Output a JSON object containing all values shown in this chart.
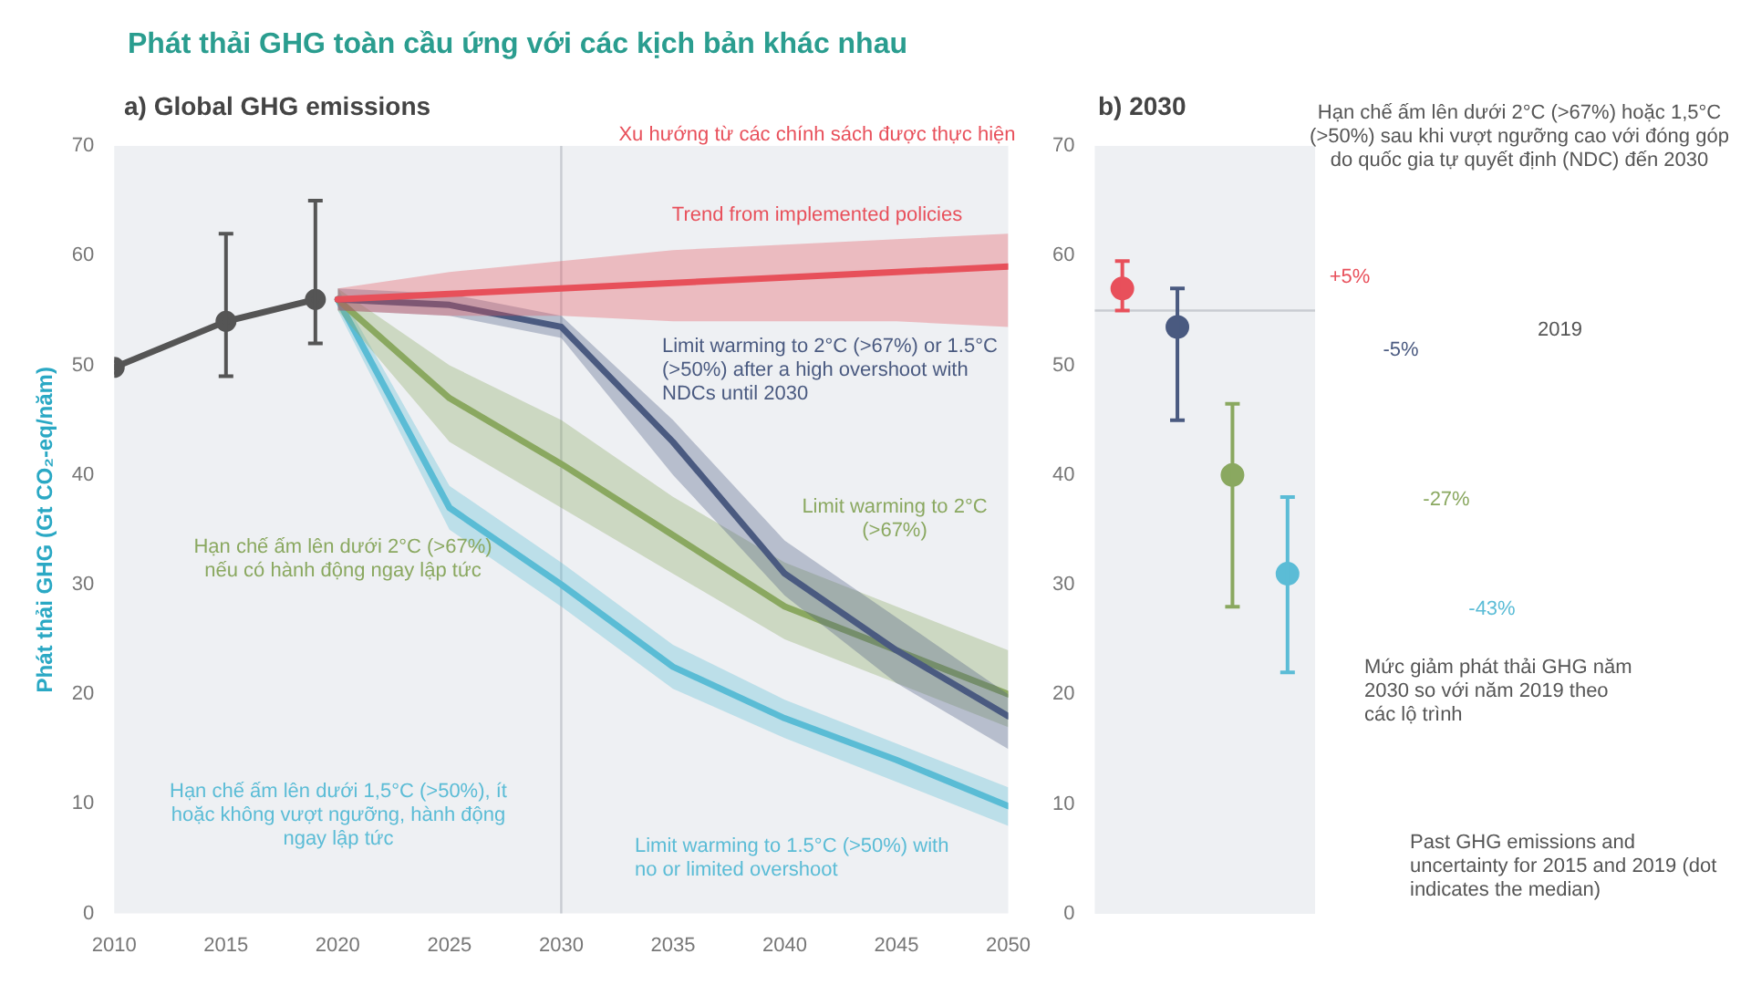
{
  "chart_data": [
    {
      "type": "line",
      "title": "Phát thải GHG toàn cầu ứng với các kịch bản khác nhau",
      "subtitle": "a) Global GHG emissions",
      "ylabel": "Phát thải GHG (Gt CO₂-eq/năm)",
      "xlim": [
        2010,
        2050
      ],
      "xticks": [
        2010,
        2015,
        2020,
        2025,
        2030,
        2035,
        2040,
        2045,
        2050
      ],
      "ylim": [
        0,
        70
      ],
      "yticks": [
        0,
        10,
        20,
        30,
        40,
        50,
        60,
        70
      ],
      "grid": false,
      "ref_lines": [
        {
          "axis": "x",
          "value": 2030,
          "label": null
        }
      ],
      "series": [
        {
          "color": "#555555",
          "marker": "circle",
          "x": [
            2010,
            2015,
            2019
          ],
          "values": [
            49.8,
            54,
            56
          ],
          "errors": [
            null,
            [
              49,
              62
            ],
            [
              52,
              65
            ]
          ]
        },
        {
          "name": "Xu hướng từ các chính sách được thực hiện",
          "color": "#e8505b",
          "x": [
            2020,
            2025,
            2030,
            2035,
            2040,
            2045,
            2050
          ],
          "values": [
            56,
            56.5,
            57,
            57.5,
            58,
            58.5,
            59
          ],
          "lower": [
            55,
            54.5,
            54.5,
            54,
            54,
            54,
            53.5
          ],
          "upper": [
            57,
            58.5,
            59.5,
            60.5,
            61,
            61.5,
            62
          ]
        },
        {
          "name": "Limit warming to 2°C (>67%) or 1.5°C (>50%) after a high overshoot with NDCs until 2030",
          "color": "#4a5a80",
          "x": [
            2020,
            2025,
            2030,
            2035,
            2040,
            2045,
            2050
          ],
          "values": [
            56,
            55.5,
            53.5,
            43,
            31,
            24,
            18
          ],
          "lower": [
            55,
            54.5,
            52.5,
            40,
            29,
            21,
            15
          ],
          "upper": [
            57,
            56.5,
            54.5,
            45,
            34,
            27,
            20
          ]
        },
        {
          "name": "Hạn chế ấm lên dưới 2°C (>67%) nếu có hành động ngay lập tức",
          "color": "#8aa860",
          "x": [
            2020,
            2025,
            2030,
            2035,
            2040,
            2045,
            2050
          ],
          "values": [
            56,
            47,
            41,
            34.5,
            28,
            24,
            20
          ],
          "lower": [
            55,
            43,
            37,
            31,
            25,
            21,
            17
          ],
          "upper": [
            57,
            50,
            45,
            38,
            32,
            28,
            24
          ]
        },
        {
          "name": "Hạn chế ấm lên dưới 1,5°C (>50%), ít hoặc không vượt ngưỡng, hành động ngay lập tức",
          "color": "#5bbcd6",
          "x": [
            2020,
            2025,
            2030,
            2035,
            2040,
            2045,
            2050
          ],
          "values": [
            56,
            37,
            30,
            22.5,
            17.8,
            14,
            9.8
          ],
          "lower": [
            55,
            35,
            28,
            20.5,
            16,
            12,
            8
          ],
          "upper": [
            57,
            39,
            32,
            24.5,
            19.5,
            15.5,
            11.5
          ]
        }
      ],
      "annotations": [
        "Trend from implemented policies",
        "Limit warming to 2°C (>67%)",
        "Limit warming to 1.5°C (>50%) with no or limited overshoot",
        "Past GHG emissions and uncertainty for 2015 and 2019 (dot indicates the median)"
      ]
    },
    {
      "type": "scatter",
      "title": "b) 2030",
      "categories": [
        null,
        null,
        null,
        null
      ],
      "ylim": [
        0,
        70
      ],
      "yticks": [
        0,
        10,
        20,
        30,
        40,
        50,
        60,
        70
      ],
      "tick_labels": "y",
      "marker": "circle",
      "ref_lines": [
        {
          "axis": "y",
          "value": 55,
          "label": null
        }
      ],
      "series": [
        {
          "color": "#e8505b",
          "values": [
            57,
            null,
            null,
            null
          ],
          "errors": [
            [
              55,
              59.5
            ],
            null,
            null,
            null
          ]
        },
        {
          "color": "#4a5a80",
          "values": [
            null,
            53.5,
            null,
            null
          ],
          "errors": [
            null,
            [
              45,
              57
            ],
            null,
            null
          ]
        },
        {
          "color": "#8aa860",
          "values": [
            null,
            null,
            40,
            null
          ],
          "errors": [
            null,
            null,
            [
              28,
              46.5
            ],
            null
          ]
        },
        {
          "color": "#5bbcd6",
          "values": [
            null,
            null,
            null,
            31
          ],
          "errors": [
            null,
            null,
            null,
            [
              22,
              38
            ]
          ]
        }
      ],
      "annotations": [
        "Hạn chế ấm lên dưới 2°C (>67%) hoặc 1,5°C (>50%) sau khi vượt ngưỡng cao với đóng góp do quốc gia tự quyết định (NDC) đến 2030",
        "+5%",
        "-5%",
        "-27%",
        "-43%",
        "Mức giảm phát thải GHG năm 2030 so với năm 2019 theo các lộ trình",
        "2019"
      ]
    }
  ]
}
